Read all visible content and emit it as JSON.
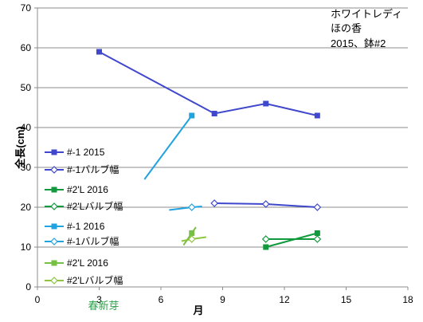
{
  "chart_data": {
    "type": "line",
    "title_lines": [
      "ホワイトレディ",
      "ほの香",
      "2015、鉢#2"
    ],
    "xlabel": "月",
    "ylabel": "全長(cm)",
    "xlim": [
      0,
      18
    ],
    "ylim": [
      0,
      70
    ],
    "xticks": [
      0,
      3,
      6,
      9,
      12,
      15,
      18
    ],
    "yticks": [
      0,
      10,
      20,
      30,
      40,
      50,
      60,
      70
    ],
    "grid": "horizontal",
    "legend_position": "left",
    "annotation": {
      "text": "春新芽",
      "x": 3
    },
    "series": [
      {
        "name": "#-1 2015",
        "color": "#3f48cc",
        "marker": "square-filled",
        "x": [
          3.0,
          8.6,
          11.1,
          13.6
        ],
        "y": [
          59,
          43.5,
          46,
          43
        ],
        "connect": [
          false,
          true,
          true,
          true
        ]
      },
      {
        "name": "#-1バルブ幅",
        "color": "#3f48cc",
        "marker": "diamond-open",
        "x": [
          8.6,
          11.1,
          13.6
        ],
        "y": [
          21,
          20.8,
          20
        ],
        "connect": [
          true,
          true,
          true
        ]
      },
      {
        "name": "#2'L 2016",
        "color": "#119a3d",
        "marker": "square-filled",
        "x": [
          11.1,
          13.6
        ],
        "y": [
          10,
          13.5
        ],
        "connect": [
          true,
          true
        ]
      },
      {
        "name": "#2'Lバルブ幅",
        "color": "#119a3d",
        "marker": "diamond-open",
        "x": [
          11.1,
          13.6
        ],
        "y": [
          12,
          12
        ],
        "connect": [
          true,
          true
        ]
      },
      {
        "name": "#-1 2016",
        "color": "#21a3df",
        "marker": "square-filled",
        "x": [
          5.2,
          7.5
        ],
        "y": [
          27,
          43
        ],
        "connect": [
          true,
          true
        ]
      },
      {
        "name": "#-1バルブ幅",
        "color": "#21a3df",
        "marker": "diamond-open",
        "x": [
          6.4,
          7.5,
          8.0
        ],
        "y": [
          19.3,
          20,
          20.2
        ],
        "connect": [
          true,
          true,
          true
        ]
      },
      {
        "name": "#2'L 2016",
        "color": "#76c043",
        "marker": "square-filled",
        "x": [
          7.1,
          7.5,
          7.7
        ],
        "y": [
          10.5,
          13.5,
          15
        ],
        "connect": [
          true,
          true,
          true
        ]
      },
      {
        "name": "#2'Lバルブ幅",
        "color": "#8cc63f",
        "marker": "diamond-open",
        "x": [
          7.0,
          7.5,
          8.2
        ],
        "y": [
          11.5,
          12,
          12.5
        ],
        "connect": [
          true,
          true,
          true
        ]
      }
    ],
    "marker_points": [
      {
        "series": 0,
        "x": 3.0,
        "y": 59
      },
      {
        "series": 0,
        "x": 8.6,
        "y": 43.5
      },
      {
        "series": 0,
        "x": 11.1,
        "y": 46
      },
      {
        "series": 0,
        "x": 13.6,
        "y": 43
      },
      {
        "series": 1,
        "x": 8.6,
        "y": 21
      },
      {
        "series": 1,
        "x": 11.1,
        "y": 20.8
      },
      {
        "series": 1,
        "x": 13.6,
        "y": 20
      },
      {
        "series": 2,
        "x": 11.1,
        "y": 10
      },
      {
        "series": 2,
        "x": 13.6,
        "y": 13.5
      },
      {
        "series": 3,
        "x": 11.1,
        "y": 12
      },
      {
        "series": 3,
        "x": 13.6,
        "y": 12
      },
      {
        "series": 4,
        "x": 7.5,
        "y": 43
      },
      {
        "series": 5,
        "x": 7.5,
        "y": 20
      },
      {
        "series": 6,
        "x": 7.5,
        "y": 13.5
      },
      {
        "series": 7,
        "x": 7.5,
        "y": 12
      }
    ]
  }
}
